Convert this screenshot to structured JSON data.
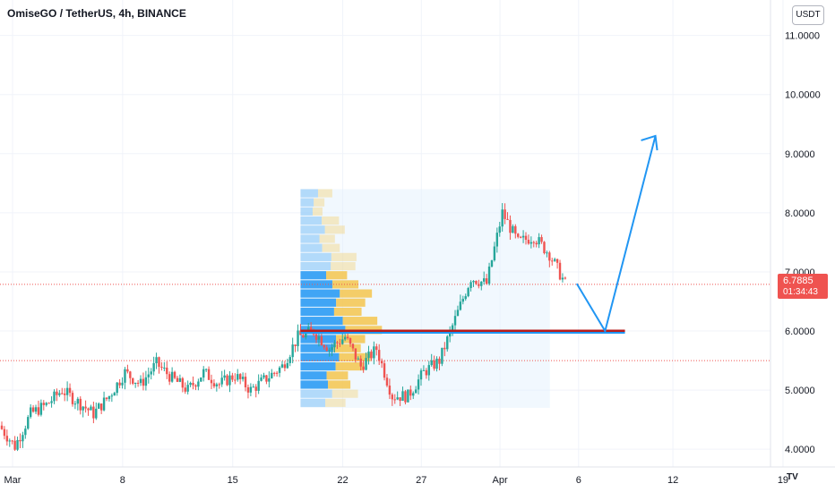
{
  "header": {
    "title": "OmiseGO / TetherUS, 4h, BINANCE",
    "currency": "USDT"
  },
  "price_tag": {
    "value": "6.7885",
    "countdown": "01:34:43",
    "color": "#ef5350"
  },
  "colors": {
    "up": "#26a69a",
    "down": "#ef5350",
    "projection": "#2196f3",
    "poc": "#b71c1c",
    "vp_up": "#2196f3",
    "vp_down": "#f5c242"
  },
  "chart_data": {
    "type": "candlestick",
    "y_axis": {
      "min": 3.7,
      "max": 11.6,
      "ticks": [
        "4.0000",
        "5.0000",
        "6.0000",
        "7.0000",
        "8.0000",
        "9.0000",
        "10.0000",
        "11.0000"
      ],
      "tick_values": [
        4,
        5,
        6,
        7,
        8,
        9,
        10,
        11
      ]
    },
    "x_axis": {
      "start": "Mar 1",
      "end": "Apr 20",
      "tick_labels": [
        "Mar",
        "8",
        "15",
        "22",
        "27",
        "Apr",
        "6",
        "12",
        "19"
      ],
      "tick_days": [
        1,
        8,
        15,
        22,
        27,
        32,
        37,
        43,
        50
      ]
    },
    "close_series_anchors": [
      {
        "day": 0,
        "price": 4.4
      },
      {
        "day": 1,
        "price": 4.05
      },
      {
        "day": 2,
        "price": 4.6
      },
      {
        "day": 3,
        "price": 4.75
      },
      {
        "day": 4,
        "price": 5.0
      },
      {
        "day": 5,
        "price": 4.8
      },
      {
        "day": 6,
        "price": 4.6
      },
      {
        "day": 7,
        "price": 4.9
      },
      {
        "day": 8,
        "price": 5.3
      },
      {
        "day": 9,
        "price": 5.1
      },
      {
        "day": 10,
        "price": 5.45
      },
      {
        "day": 11,
        "price": 5.2
      },
      {
        "day": 12,
        "price": 5.0
      },
      {
        "day": 13,
        "price": 5.3
      },
      {
        "day": 14,
        "price": 5.1
      },
      {
        "day": 15,
        "price": 5.25
      },
      {
        "day": 16,
        "price": 5.0
      },
      {
        "day": 17,
        "price": 5.2
      },
      {
        "day": 18,
        "price": 5.4
      },
      {
        "day": 19,
        "price": 5.9
      },
      {
        "day": 20,
        "price": 6.0
      },
      {
        "day": 21,
        "price": 5.7
      },
      {
        "day": 22,
        "price": 5.9
      },
      {
        "day": 23,
        "price": 5.4
      },
      {
        "day": 24,
        "price": 5.7
      },
      {
        "day": 25,
        "price": 4.9
      },
      {
        "day": 26,
        "price": 4.9
      },
      {
        "day": 27,
        "price": 5.3
      },
      {
        "day": 28,
        "price": 5.5
      },
      {
        "day": 29,
        "price": 6.2
      },
      {
        "day": 30,
        "price": 6.9
      },
      {
        "day": 31,
        "price": 6.8
      },
      {
        "day": 32,
        "price": 8.0
      },
      {
        "day": 33,
        "price": 7.5
      },
      {
        "day": 34,
        "price": 7.6
      },
      {
        "day": 35,
        "price": 7.3
      },
      {
        "day": 36,
        "price": 6.8
      }
    ],
    "volume_profile": {
      "start_day": 19,
      "end_day": 36,
      "low": 4.7,
      "high": 8.4,
      "poc": 6.0
    },
    "horizontal_lines": [
      6.79,
      5.5
    ],
    "projection_path": [
      {
        "day": 36,
        "price": 6.8
      },
      {
        "day": 37.8,
        "price": 6.0
      },
      {
        "day": 41,
        "price": 9.3
      }
    ],
    "support_line": {
      "start_day": 19,
      "end_day": 41,
      "price": 6.0
    }
  }
}
